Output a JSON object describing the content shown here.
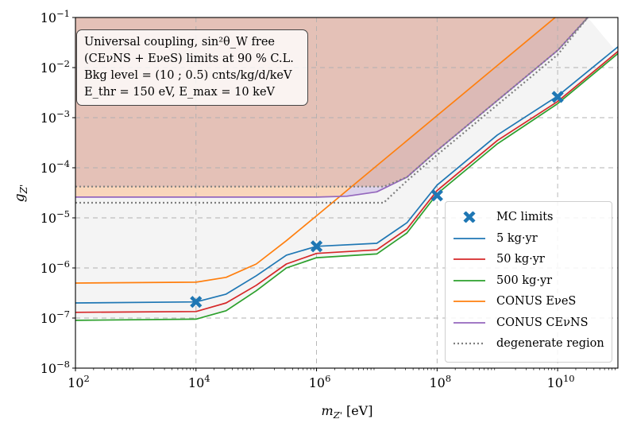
{
  "chart_data": {
    "type": "line",
    "x_scale": "log",
    "y_scale": "log",
    "xlabel": "m_{Z'} [eV]",
    "ylabel": "g_{Z'}",
    "xlim": [
      100,
      100000000000
    ],
    "ylim": [
      1e-08,
      0.1
    ],
    "grid": true,
    "legend_position": "lower-right",
    "x_ticks": [
      {
        "value": 100,
        "base": "10",
        "exp": "2"
      },
      {
        "value": 10000,
        "base": "10",
        "exp": "4"
      },
      {
        "value": 1000000,
        "base": "10",
        "exp": "6"
      },
      {
        "value": 100000000,
        "base": "10",
        "exp": "8"
      },
      {
        "value": 10000000000,
        "base": "10",
        "exp": "10"
      }
    ],
    "y_ticks": [
      {
        "value": 1e-08,
        "base": "10",
        "exp": "−8"
      },
      {
        "value": 1e-07,
        "base": "10",
        "exp": "−7"
      },
      {
        "value": 1e-06,
        "base": "10",
        "exp": "−6"
      },
      {
        "value": 1e-05,
        "base": "10",
        "exp": "−5"
      },
      {
        "value": 0.0001,
        "base": "10",
        "exp": "−4"
      },
      {
        "value": 0.001,
        "base": "10",
        "exp": "−3"
      },
      {
        "value": 0.01,
        "base": "10",
        "exp": "−2"
      },
      {
        "value": 0.1,
        "base": "10",
        "exp": "−1"
      }
    ],
    "annotation": [
      "Universal coupling, sin²θ_W free",
      "(CEνNS + EνeS) limits at 90 % C.L.",
      "Bkg level = (10 ; 0.5) cnts/kg/d/keV",
      "E_thr = 150 eV, E_max = 10 keV"
    ],
    "series": [
      {
        "name": "5 kg·yr",
        "color": "#1f77b4",
        "style": "solid",
        "x": [
          100,
          10000,
          31600,
          100000,
          316000,
          1000000,
          10000000,
          31600000,
          100000000,
          1000000000,
          10000000000,
          100000000000
        ],
        "y": [
          2e-07,
          2.1e-07,
          3e-07,
          7e-07,
          1.8e-06,
          2.7e-06,
          3.1e-06,
          8e-06,
          4.5e-05,
          0.00045,
          0.0027,
          0.026
        ]
      },
      {
        "name": "50 kg·yr",
        "color": "#d62728",
        "style": "solid",
        "x": [
          100,
          10000,
          31600,
          100000,
          316000,
          1000000,
          10000000,
          31600000,
          100000000,
          1000000000,
          10000000000,
          100000000000
        ],
        "y": [
          1.3e-07,
          1.35e-07,
          2e-07,
          4.5e-07,
          1.2e-06,
          1.95e-06,
          2.3e-06,
          6e-06,
          3.5e-05,
          0.00035,
          0.0021,
          0.021
        ]
      },
      {
        "name": "500 kg·yr",
        "color": "#2ca02c",
        "style": "solid",
        "x": [
          100,
          10000,
          31600,
          100000,
          316000,
          1000000,
          10000000,
          31600000,
          100000000,
          1000000000,
          10000000000,
          100000000000
        ],
        "y": [
          9e-08,
          9.5e-08,
          1.4e-07,
          3.5e-07,
          1e-06,
          1.6e-06,
          1.9e-06,
          5e-06,
          3e-05,
          0.0003,
          0.0019,
          0.019
        ]
      },
      {
        "name": "CONUS EνeS",
        "color": "#ff7f0e",
        "style": "solid",
        "fill": "#f9d6bb",
        "x": [
          100,
          10000,
          31600,
          100000,
          316000,
          1000000,
          10000000,
          100000000,
          1000000000,
          10000000000
        ],
        "y": [
          5e-07,
          5.2e-07,
          6.5e-07,
          1.2e-06,
          3.5e-06,
          1.1e-05,
          0.00011,
          0.0011,
          0.011,
          0.11
        ]
      },
      {
        "name": "CONUS CEνNS",
        "color": "#9467bd",
        "style": "solid",
        "fill": "#dcd3ec",
        "x": [
          100,
          1000000,
          3160000,
          10000000,
          31600000,
          100000000,
          1000000000,
          10000000000,
          31600000000
        ],
        "y": [
          2.6e-05,
          2.6e-05,
          2.7e-05,
          3.3e-05,
          6.5e-05,
          0.00022,
          0.0022,
          0.022,
          0.1
        ]
      },
      {
        "name": "degenerate region",
        "color": "#7f7f7f",
        "style": "dotted",
        "x": [
          100,
          13000000,
          31600000,
          100000000,
          1000000000,
          10000000000,
          31600000000
        ],
        "y": [
          4.2e-05,
          4.2e-05,
          6.5e-05,
          0.00022,
          0.0022,
          0.022,
          0.1
        ]
      },
      {
        "name": "",
        "color": "#7f7f7f",
        "style": "dotted",
        "x": [
          100,
          13000000,
          31600000,
          100000000,
          1000000000,
          10000000000,
          31600000000
        ],
        "y": [
          2e-05,
          2e-05,
          5.5e-05,
          0.00018,
          0.0018,
          0.018,
          0.1
        ]
      },
      {
        "name": "MC limits",
        "color": "#1f77b4",
        "style": "marker-x",
        "x": [
          10000,
          1000000,
          100000000,
          10000000000
        ],
        "y": [
          2.1e-07,
          2.7e-06,
          2.8e-05,
          0.0026
        ]
      }
    ],
    "regions": [
      {
        "color": "#dcbab6",
        "description": "excluded above CONUS CEνNS",
        "lower_y": 4.2e-05
      },
      {
        "color": "#f4f4f4",
        "description": "band between 500 kg·yr and CONUS CEνNS curves"
      }
    ]
  },
  "legend": {
    "items": [
      {
        "label": "MC limits",
        "color": "#1f77b4",
        "kind": "marker"
      },
      {
        "label": "5 kg·yr",
        "color": "#1f77b4",
        "kind": "line"
      },
      {
        "label": "50 kg·yr",
        "color": "#d62728",
        "kind": "line"
      },
      {
        "label": "500 kg·yr",
        "color": "#2ca02c",
        "kind": "line"
      },
      {
        "label": "CONUS EνeS",
        "color": "#ff7f0e",
        "kind": "line"
      },
      {
        "label": "CONUS CEνNS",
        "color": "#9467bd",
        "kind": "line"
      },
      {
        "label": "degenerate region",
        "color": "#7f7f7f",
        "kind": "dotted"
      }
    ]
  }
}
